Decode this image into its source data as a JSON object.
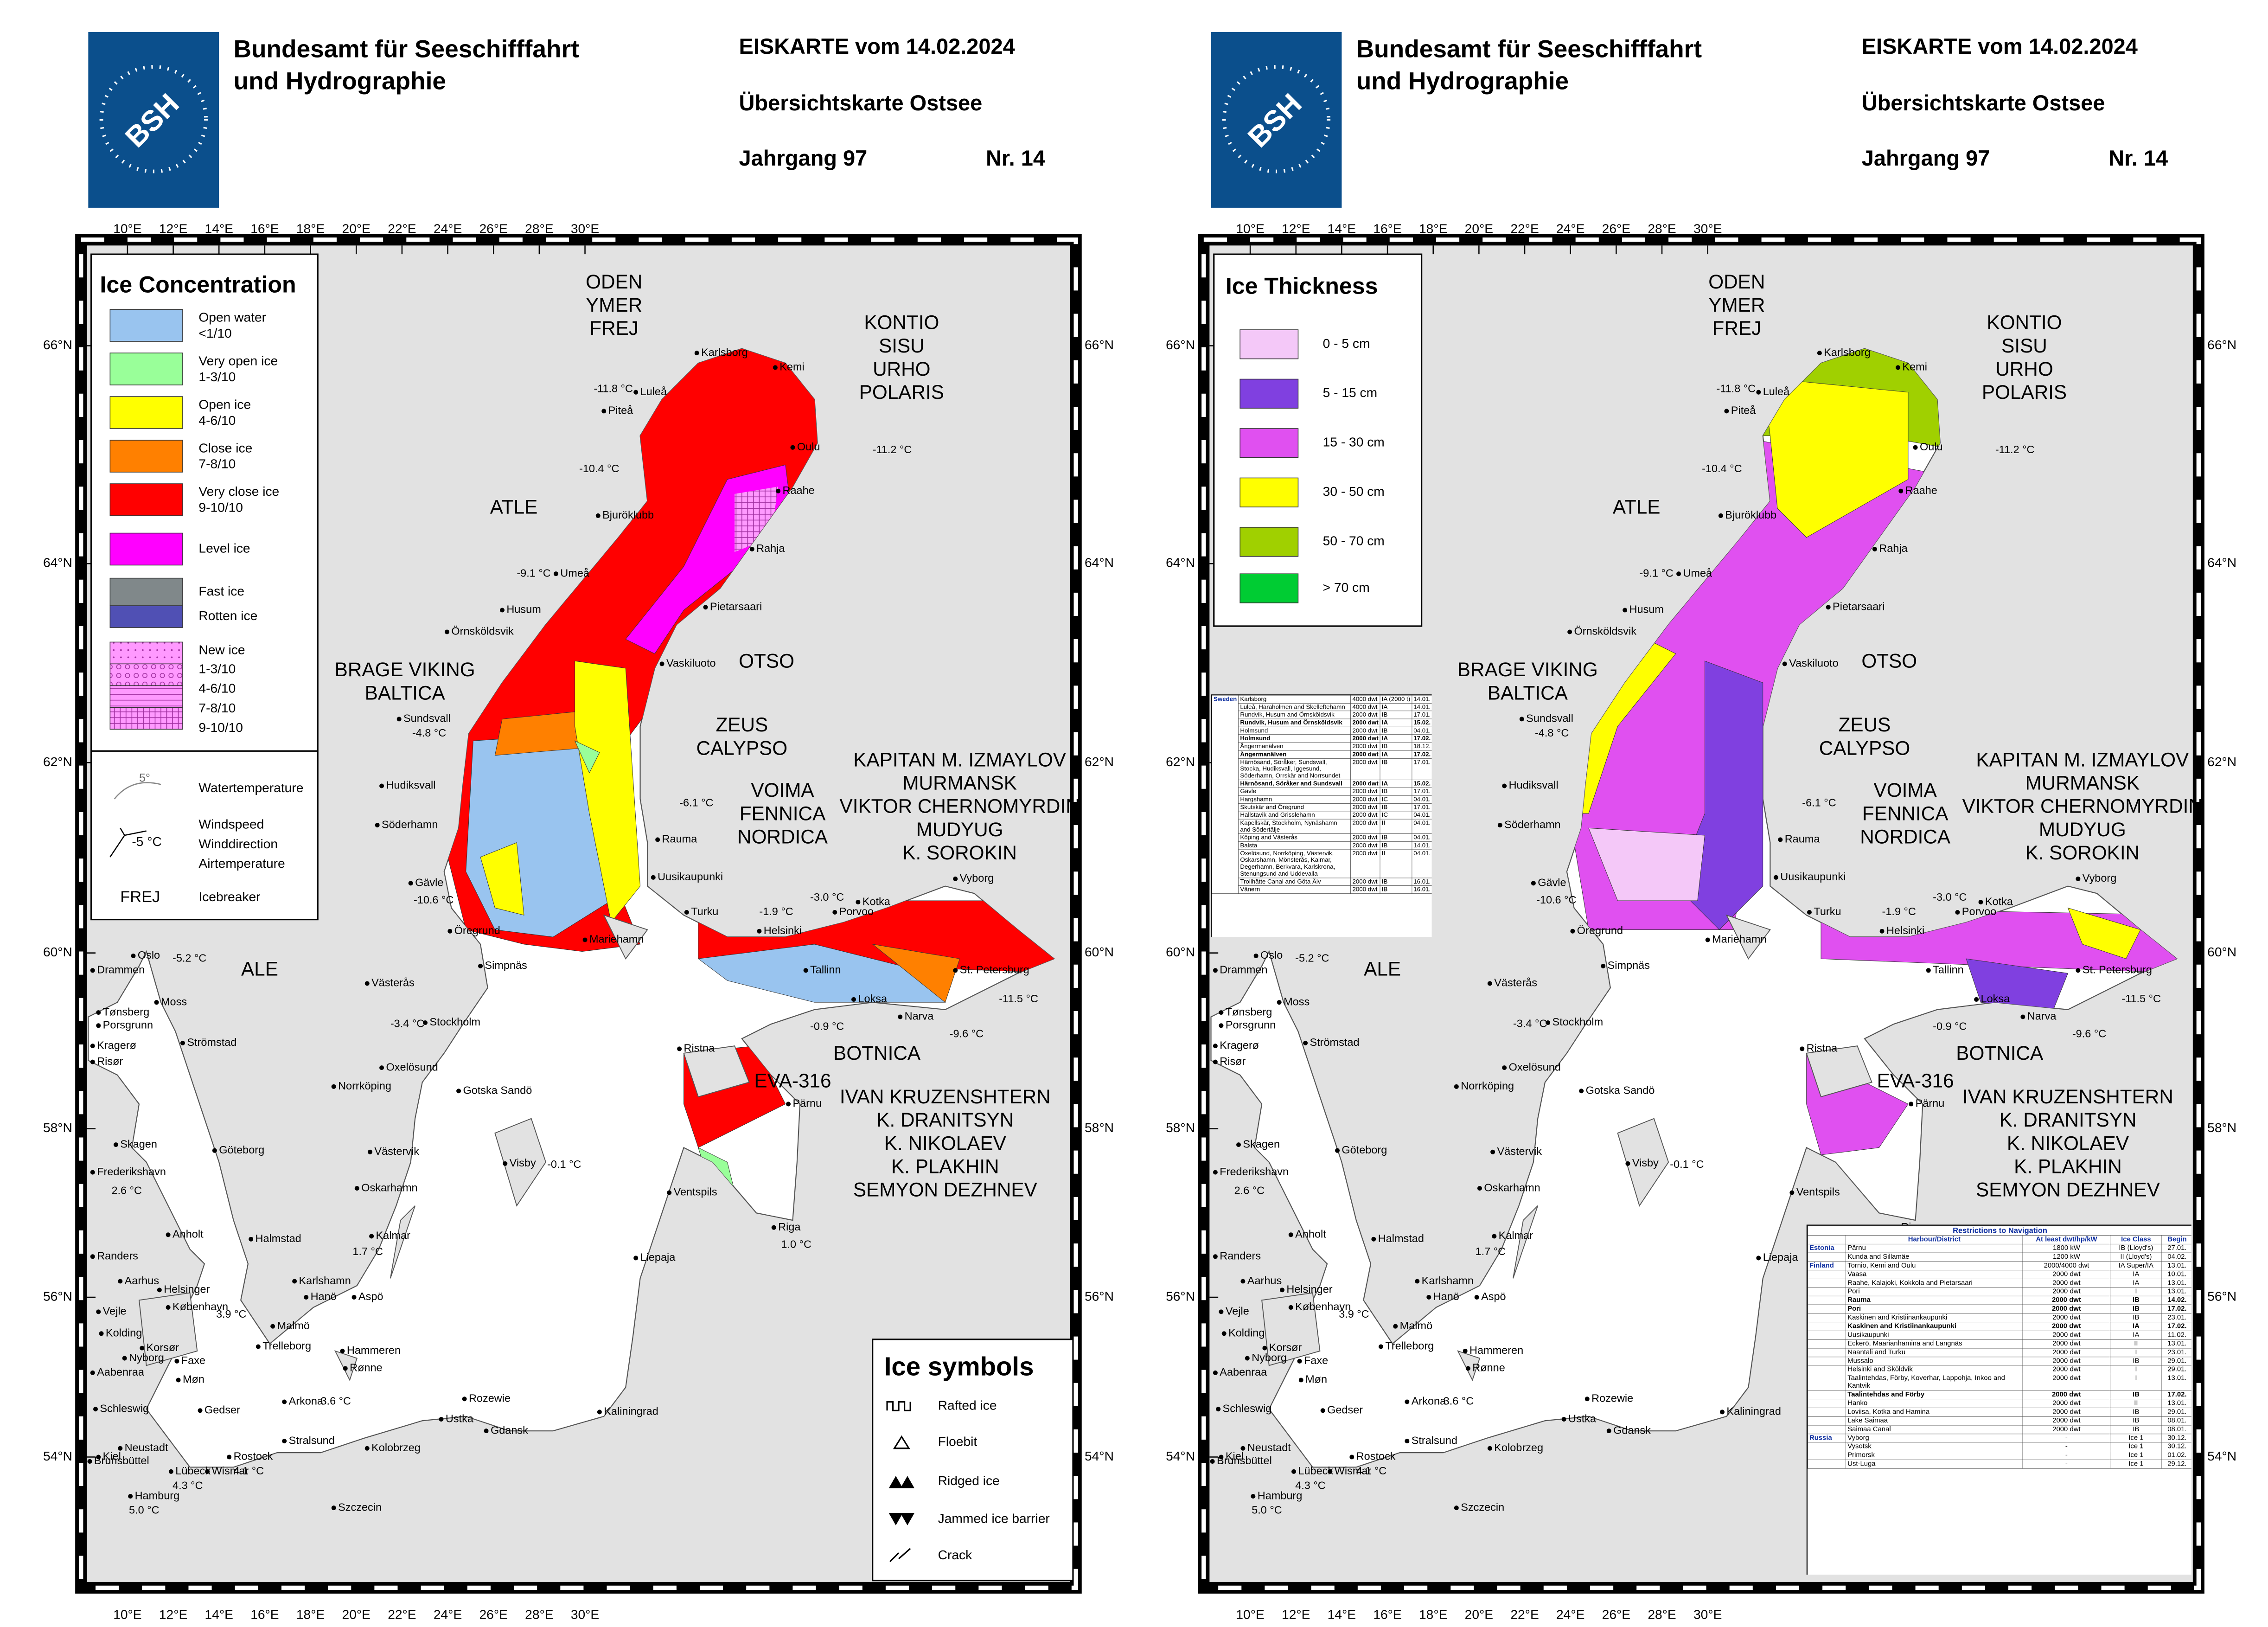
{
  "header": {
    "org_line1": "Bundesamt für Seeschifffahrt",
    "org_line2": "und Hydrographie",
    "logo": "BSH",
    "title": "EISKARTE vom 14.02.2024",
    "subtitle": "Übersichtskarte Ostsee",
    "volume": "Jahrgang 97",
    "number": "Nr. 14"
  },
  "map": {
    "lon_labels": [
      "10°E",
      "12°E",
      "14°E",
      "16°E",
      "18°E",
      "20°E",
      "22°E",
      "24°E",
      "26°E",
      "28°E",
      "30°E"
    ],
    "lat_labels": [
      "54°N",
      "56°N",
      "58°N",
      "60°N",
      "62°N",
      "64°N",
      "66°N"
    ],
    "places": [
      "Karlsborg",
      "Kemi",
      "Luleå",
      "Piteå",
      "Oulu",
      "Raahe",
      "Bjuröklubb",
      "Rahja",
      "Umeå",
      "Pietarsaari",
      "Husum",
      "Örnsköldsvik",
      "Vaskiluoto",
      "Sundsvall",
      "Hudiksvall",
      "Söderhamn",
      "Rauma",
      "Gävle",
      "Uusikaupunki",
      "Turku",
      "Öregrund",
      "Mariehamn",
      "Helsinki",
      "Porvoo",
      "Kotka",
      "Vyborg",
      "Simpnäs",
      "Västerås",
      "St. Petersburg",
      "Tallinn",
      "Loksa",
      "Narva",
      "Stockholm",
      "Ristna",
      "Oxelösund",
      "Norrköping",
      "Gotska Sandö",
      "Pärnu",
      "Västervik",
      "Visby",
      "Oskarhamn",
      "Ventspils",
      "Riga",
      "Kalmar",
      "Liepaja",
      "Karlshamn",
      "Hanö",
      "Aspö",
      "Malmö",
      "Hammeren",
      "Rønne",
      "Arkona",
      "Rozewie",
      "Ustka",
      "Kaliningrad",
      "Gdansk",
      "Stralsund",
      "Kolobrzeg",
      "Rostock",
      "Wismar",
      "Lübeck",
      "Szczecin",
      "Hamburg",
      "Kiel",
      "Neustadt",
      "Oslo",
      "Drammen",
      "Moss",
      "Tønsberg",
      "Porsgrunn",
      "Kragerø",
      "Risør",
      "Strömstad",
      "Göteborg",
      "Skagen",
      "Frederikshavn",
      "Anholt",
      "Halmstad",
      "Randers",
      "Aarhus",
      "Helsinger",
      "København",
      "Vejle",
      "Kolding",
      "Korsør",
      "Nyborg",
      "Faxe",
      "Møn",
      "Gedser",
      "Trelleborg",
      "Aabenraa",
      "Schleswig",
      "Brunsbüttel"
    ],
    "temperatures": [
      "-11.8 °C",
      "-10.4 °C",
      "-11.2 °C",
      "-9.1 °C",
      "-4.8 °C",
      "-6.1 °C",
      "-10.6 °C",
      "-1.9 °C",
      "-3.0 °C",
      "-5.2 °C",
      "-11.5 °C",
      "-3.4 °C",
      "-0.9 °C",
      "-9.6 °C",
      "-0.1 °C",
      "2.6 °C",
      "1.7 °C",
      "1.0 °C",
      "3.9 °C",
      "3.6 °C",
      "4.3 °C",
      "4.1 °C",
      "5.0 °C"
    ],
    "icebreakers": [
      [
        "ODEN",
        "YMER",
        "FREJ"
      ],
      [
        "KONTIO",
        "SISU",
        "URHO",
        "POLARIS"
      ],
      [
        "ATLE"
      ],
      [
        "BRAGE VIKING",
        "BALTICA"
      ],
      [
        "OTSO"
      ],
      [
        "ZEUS",
        "CALYPSO"
      ],
      [
        "VOIMA",
        "FENNICA",
        "NORDICA"
      ],
      [
        "KAPITAN M. IZMAYLOV",
        "MURMANSK",
        "VIKTOR CHERNOMYRDIN",
        "MUDYUG",
        "K. SOROKIN"
      ],
      [
        "ALE"
      ],
      [
        "BOTNICA"
      ],
      [
        "EVA-316"
      ],
      [
        "IVAN KRUZENSHTERN",
        "K. DRANITSYN",
        "K. NIKOLAEV",
        "K. PLAKHIN",
        "SEMYON DEZHNEV"
      ]
    ]
  },
  "concentration_legend": {
    "title": "Ice Concentration",
    "items": [
      {
        "lines": [
          "Open water",
          "<1/10"
        ],
        "color": "#99c4ef"
      },
      {
        "lines": [
          "Very open ice",
          "1-3/10"
        ],
        "color": "#99ff99"
      },
      {
        "lines": [
          "Open ice",
          "4-6/10"
        ],
        "color": "#ffff00"
      },
      {
        "lines": [
          "Close ice",
          "7-8/10"
        ],
        "color": "#ff8000"
      },
      {
        "lines": [
          "Very close ice",
          "9-10/10"
        ],
        "color": "#ff0000"
      },
      {
        "lines": [
          "Level ice"
        ],
        "color": "#ff00ff"
      },
      {
        "lines": [
          "Fast ice"
        ],
        "color": "#80888a"
      },
      {
        "lines": [
          "Rotten ice"
        ],
        "color": "#5050b4"
      }
    ],
    "new_ice": {
      "title": "New ice",
      "color": "#ff99ff",
      "items": [
        {
          "label": "1-3/10",
          "pattern": "dots"
        },
        {
          "label": "4-6/10",
          "pattern": "circles"
        },
        {
          "label": "7-8/10",
          "pattern": "hlines"
        },
        {
          "label": "9-10/10",
          "pattern": "grid"
        }
      ]
    },
    "water_temperature": {
      "sample": "5°",
      "label": "Watertemperature"
    },
    "wind": {
      "sample": "-5 °C",
      "lines": [
        "Windspeed",
        "Winddirection",
        "Airtemperature"
      ]
    },
    "icebreaker": {
      "sample": "FREJ",
      "label": "Icebreaker"
    }
  },
  "symbols_legend": {
    "title": "Ice symbols",
    "items": [
      "Rafted ice",
      "Floebit",
      "Ridged ice",
      "Jammed ice barrier",
      "Crack"
    ]
  },
  "thickness_legend": {
    "title": "Ice Thickness",
    "items": [
      {
        "label": "0 - 5 cm",
        "color": "#f4c8f8"
      },
      {
        "label": "5 - 15 cm",
        "color": "#8040e0"
      },
      {
        "label": "15 - 30 cm",
        "color": "#e050f0"
      },
      {
        "label": "30 - 50 cm",
        "color": "#ffff00"
      },
      {
        "label": "50 - 70 cm",
        "color": "#a0d000"
      },
      {
        "label": "> 70 cm",
        "color": "#00cc33"
      }
    ]
  },
  "sweden_table": {
    "country": "Sweden",
    "rows": [
      {
        "harbour": "Karlsborg",
        "min": "4000 dwt",
        "class": "IA (2000 t)",
        "begin": "14.01."
      },
      {
        "harbour": "Luleå, Haraholmen and Skelleftehamn",
        "min": "4000 dwt",
        "class": "IA",
        "begin": "14.01."
      },
      {
        "harbour": "Rundvik, Husum and Örnsköldsvik",
        "min": "2000 dwt",
        "class": "IB",
        "begin": "17.01."
      },
      {
        "harbour": "Rundvik, Husum and Örnsköldsvik",
        "min": "2000 dwt",
        "class": "IA",
        "begin": "15.02.",
        "bold": true
      },
      {
        "harbour": "Holmsund",
        "min": "2000 dwt",
        "class": "IB",
        "begin": "04.01."
      },
      {
        "harbour": "Holmsund",
        "min": "2000 dwt",
        "class": "IA",
        "begin": "17.02.",
        "bold": true
      },
      {
        "harbour": "Ångermanälven",
        "min": "2000 dwt",
        "class": "IB",
        "begin": "18.12."
      },
      {
        "harbour": "Ångermanälven",
        "min": "2000 dwt",
        "class": "IA",
        "begin": "17.02.",
        "bold": true
      },
      {
        "harbour": "Härnösand, Söråker, Sundsvall, Stocka, Hudiksvall, Iggesund, Söderhamn, Orrskär and Norrsundet",
        "min": "2000 dwt",
        "class": "IB",
        "begin": "17.01."
      },
      {
        "harbour": "Härnösand, Söråker and Sundsvall",
        "min": "2000 dwt",
        "class": "IA",
        "begin": "15.02.",
        "bold": true
      },
      {
        "harbour": "Gävle",
        "min": "2000 dwt",
        "class": "IB",
        "begin": "17.01."
      },
      {
        "harbour": "Hargshamn",
        "min": "2000 dwt",
        "class": "IC",
        "begin": "04.01."
      },
      {
        "harbour": "Skutskär and Öregrund",
        "min": "2000 dwt",
        "class": "IB",
        "begin": "17.01."
      },
      {
        "harbour": "Hallstavik and Grisslehamn",
        "min": "2000 dwt",
        "class": "IC",
        "begin": "04.01."
      },
      {
        "harbour": "Kapellskär, Stockholm, Nynäshamn and Södertälje",
        "min": "2000 dwt",
        "class": "II",
        "begin": "04.01."
      },
      {
        "harbour": "Köping and Västerås",
        "min": "2000 dwt",
        "class": "IB",
        "begin": "04.01."
      },
      {
        "harbour": "Balsta",
        "min": "2000 dwt",
        "class": "IB",
        "begin": "14.01."
      },
      {
        "harbour": "Oxelösund, Norrköping, Västervik, Oskarshamn, Mönsterås, Kalmar, Degerhamn, Berkvara, Karlskrona, Stenungsund and Uddevalla",
        "min": "2000 dwt",
        "class": "II",
        "begin": "04.01."
      },
      {
        "harbour": "Trollhätte Canal and Göta Älv",
        "min": "2000 dwt",
        "class": "IB",
        "begin": "16.01."
      },
      {
        "harbour": "Vänern",
        "min": "2000 dwt",
        "class": "IB",
        "begin": "16.01."
      }
    ]
  },
  "restrictions_table": {
    "title": "Restrictions to Navigation",
    "header": [
      "Harbour/District",
      "At least dwt/hp/kW",
      "Ice Class",
      "Begin"
    ],
    "rows": [
      {
        "country": "Estonia",
        "harbour": "Pärnu",
        "min": "1800 kW",
        "class": "IB (Lloyd's)",
        "begin": "27.01."
      },
      {
        "harbour": "Kunda and Sillamäe",
        "min": "1200 kW",
        "class": "II (Lloyd's)",
        "begin": "04.02."
      },
      {
        "country": "Finland",
        "harbour": "Tornio, Kemi and Oulu",
        "min": "2000/4000 dwt",
        "class": "IA Super/IA",
        "begin": "13.01."
      },
      {
        "harbour": "Vaasa",
        "min": "2000 dwt",
        "class": "IA",
        "begin": "10.01."
      },
      {
        "harbour": "Raahe, Kalajoki, Kokkola and Pietarsaari",
        "min": "2000 dwt",
        "class": "IA",
        "begin": "13.01."
      },
      {
        "harbour": "Pori",
        "min": "2000 dwt",
        "class": "I",
        "begin": "13.01."
      },
      {
        "harbour": "Rauma",
        "min": "2000 dwt",
        "class": "IB",
        "begin": "14.02.",
        "bold": true
      },
      {
        "harbour": "Pori",
        "min": "2000 dwt",
        "class": "IB",
        "begin": "17.02.",
        "bold": true
      },
      {
        "harbour": "Kaskinen and Kristiinankaupunki",
        "min": "2000 dwt",
        "class": "IB",
        "begin": "23.01."
      },
      {
        "harbour": "Kaskinen and Kristiinankaupunki",
        "min": "2000 dwt",
        "class": "IA",
        "begin": "17.02.",
        "bold": true
      },
      {
        "harbour": "Uusikaupunki",
        "min": "2000 dwt",
        "class": "IA",
        "begin": "11.02."
      },
      {
        "harbour": "Eckerö, Maarianhamina and Langnäs",
        "min": "2000 dwt",
        "class": "II",
        "begin": "13.01."
      },
      {
        "harbour": "Naantali and Turku",
        "min": "2000 dwt",
        "class": "I",
        "begin": "23.01."
      },
      {
        "harbour": "Mussalo",
        "min": "2000 dwt",
        "class": "IB",
        "begin": "29.01."
      },
      {
        "harbour": "Helsinki and Sköldvik",
        "min": "2000 dwt",
        "class": "I",
        "begin": "29.01."
      },
      {
        "harbour": "Taalintehdas, Förby, Koverhar, Lappohja, Inkoo and Kantvik",
        "min": "2000 dwt",
        "class": "I",
        "begin": "13.01."
      },
      {
        "harbour": "Taalintehdas and Förby",
        "min": "2000 dwt",
        "class": "IB",
        "begin": "17.02.",
        "bold": true
      },
      {
        "harbour": "Hanko",
        "min": "2000 dwt",
        "class": "II",
        "begin": "13.01."
      },
      {
        "harbour": "Loviisa, Kotka and Hamina",
        "min": "2000 dwt",
        "class": "IB",
        "begin": "29.01."
      },
      {
        "harbour": "Lake Saimaa",
        "min": "2000 dwt",
        "class": "IB",
        "begin": "08.01."
      },
      {
        "harbour": "Saimaa Canal",
        "min": "2000 dwt",
        "class": "IB",
        "begin": "08.01."
      },
      {
        "country": "Russia",
        "harbour": "Vyborg",
        "min": "-",
        "class": "Ice 1",
        "begin": "30.12."
      },
      {
        "harbour": "Vysotsk",
        "min": "-",
        "class": "Ice 1",
        "begin": "30.12."
      },
      {
        "harbour": "Primorsk",
        "min": "-",
        "class": "Ice 1",
        "begin": "01.02."
      },
      {
        "harbour": "Ust-Luga",
        "min": "-",
        "class": "Ice 1",
        "begin": "29.12."
      }
    ]
  }
}
